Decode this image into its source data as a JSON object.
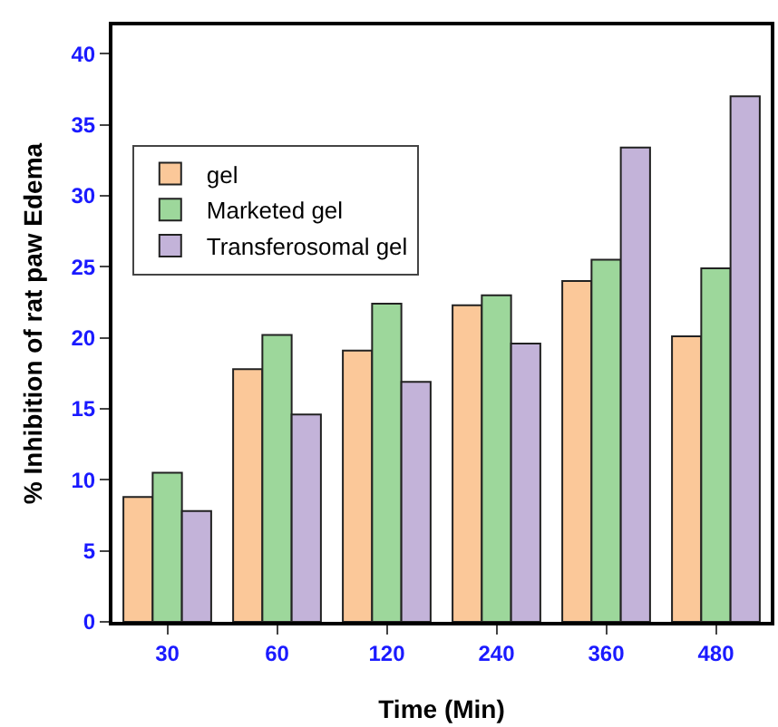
{
  "chart_data": {
    "type": "bar",
    "xlabel": "Time (Min)",
    "ylabel": "% Inhibition of rat paw Edema",
    "categories": [
      "30",
      "60",
      "120",
      "240",
      "360",
      "480"
    ],
    "series": [
      {
        "name": "gel",
        "color": "#fbc899",
        "values": [
          8.8,
          17.8,
          19.1,
          22.3,
          24.0,
          20.1
        ]
      },
      {
        "name": "Marketed gel",
        "color": "#9dd79b",
        "values": [
          10.5,
          20.2,
          22.4,
          23.0,
          25.5,
          24.9
        ]
      },
      {
        "name": "Transferosomal gel",
        "color": "#c3b3d9",
        "values": [
          7.8,
          14.6,
          16.9,
          19.6,
          33.4,
          37.0
        ]
      }
    ],
    "ylim": [
      0,
      42
    ],
    "yticks": [
      0,
      5,
      10,
      15,
      20,
      25,
      30,
      35,
      40
    ],
    "grid": false,
    "legend": "top left"
  }
}
